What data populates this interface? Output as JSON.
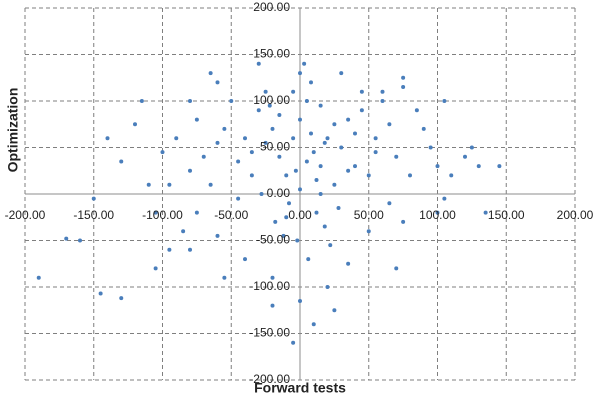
{
  "chart_data": {
    "type": "scatter",
    "x_label": "Forward tests",
    "y_label": "Optimization",
    "color": "#4a7ebb",
    "grid": true,
    "xlim": [
      -200,
      200
    ],
    "ylim": [
      -200,
      200
    ],
    "xticks": [
      {
        "value": -200,
        "label": "-200.00"
      },
      {
        "value": -150,
        "label": "-150.00"
      },
      {
        "value": -100,
        "label": "-100.00"
      },
      {
        "value": -50,
        "label": "-50.00"
      },
      {
        "value": 0,
        "label": "0.00"
      },
      {
        "value": 50,
        "label": "50.00"
      },
      {
        "value": 100,
        "label": "100.00"
      },
      {
        "value": 150,
        "label": "150.00"
      },
      {
        "value": 200,
        "label": "200.00"
      }
    ],
    "yticks": [
      {
        "value": -200,
        "label": "-200.00"
      },
      {
        "value": -150,
        "label": "-150.00"
      },
      {
        "value": -100,
        "label": "-100.00"
      },
      {
        "value": -50,
        "label": "-50.00"
      },
      {
        "value": 0,
        "label": "0.00"
      },
      {
        "value": 50,
        "label": "50.00"
      },
      {
        "value": 100,
        "label": "100.00"
      },
      {
        "value": 150,
        "label": "150.00"
      },
      {
        "value": 200,
        "label": "200.00"
      }
    ],
    "x": [
      -5,
      10,
      0,
      -20,
      15,
      5,
      -10,
      20,
      -30,
      25,
      -15,
      30,
      -25,
      8,
      -40,
      40,
      -8,
      12,
      -35,
      35,
      0,
      -50,
      50,
      -45,
      45,
      18,
      -18,
      3,
      -60,
      60,
      -70,
      70,
      -55,
      55,
      -65,
      65,
      -2,
      6,
      -12,
      22,
      -28,
      28,
      -75,
      75,
      -80,
      80,
      -90,
      90,
      -100,
      100,
      -110,
      110,
      -120,
      120,
      -130,
      130,
      -150,
      -170,
      -190,
      -145,
      -130,
      -105,
      -95,
      -85,
      -60,
      -40,
      -20,
      0,
      10,
      -5,
      20,
      35,
      50,
      70,
      100,
      105,
      95,
      125,
      135,
      145,
      -140,
      -160,
      -115,
      -65,
      -30,
      30,
      45,
      60,
      75,
      105,
      -105,
      -80,
      -55,
      -20,
      25,
      -5,
      15,
      -25,
      5,
      -15,
      25,
      -35,
      35,
      0,
      -10,
      15,
      40,
      -45,
      55,
      -60,
      -80,
      85,
      -95,
      65,
      -75,
      75,
      8,
      -3,
      18,
      -22,
      12
    ],
    "values": [
      60,
      45,
      80,
      70,
      30,
      100,
      20,
      60,
      90,
      10,
      40,
      50,
      110,
      120,
      60,
      30,
      -10,
      -20,
      20,
      80,
      130,
      100,
      20,
      -5,
      90,
      -35,
      -30,
      140,
      120,
      100,
      40,
      40,
      70,
      60,
      10,
      -10,
      -50,
      -70,
      -45,
      -55,
      0,
      -15,
      80,
      115,
      25,
      20,
      60,
      70,
      45,
      30,
      10,
      20,
      75,
      40,
      35,
      30,
      -5,
      -48,
      -90,
      -107,
      -112,
      -80,
      -60,
      -40,
      -45,
      -70,
      -90,
      -115,
      -140,
      -160,
      -100,
      -75,
      -40,
      -80,
      -20,
      -5,
      50,
      50,
      -20,
      30,
      60,
      -50,
      100,
      130,
      140,
      130,
      110,
      110,
      125,
      100,
      -20,
      -60,
      -90,
      -120,
      -125,
      110,
      95,
      55,
      35,
      85,
      75,
      45,
      25,
      5,
      -25,
      0,
      65,
      35,
      45,
      55,
      100,
      90,
      10,
      75,
      -20,
      -30,
      65,
      25,
      55,
      95,
      15
    ]
  }
}
